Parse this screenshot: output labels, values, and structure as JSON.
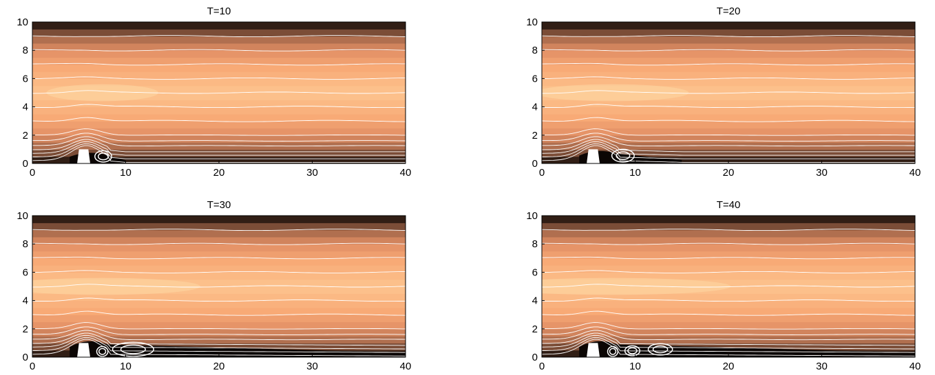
{
  "figure": {
    "colors": {
      "dark": "#0b0604",
      "mid": "#9a6046",
      "peach": "#f3a876",
      "light": "#fdc48f",
      "streamline": "#ffffff",
      "obstacle": "#ffffff"
    }
  },
  "chart_data": [
    {
      "type": "heatmap",
      "title": "T=10",
      "xlim": [
        0,
        40
      ],
      "ylim": [
        0,
        10
      ],
      "xticks": [
        0,
        10,
        20,
        30,
        40
      ],
      "yticks": [
        0,
        2,
        4,
        6,
        8,
        10
      ],
      "streamline_levels": [
        0.2,
        0.45,
        0.7,
        0.95,
        1.25,
        1.6,
        2.0,
        3.0,
        4.0,
        5.0,
        6.0,
        7.0,
        8.0,
        9.0
      ],
      "obstacle": {
        "x": [
          5,
          6
        ],
        "y": [
          0,
          1
        ]
      },
      "wake": {
        "x_end": 10,
        "height": 0.6
      },
      "eddies": [
        {
          "cx": 7.6,
          "cy": 0.5,
          "rx": 0.9,
          "ry": 0.4
        }
      ]
    },
    {
      "type": "heatmap",
      "title": "T=20",
      "xlim": [
        0,
        40
      ],
      "ylim": [
        0,
        10
      ],
      "xticks": [
        0,
        10,
        20,
        30,
        40
      ],
      "yticks": [
        0,
        2,
        4,
        6,
        8,
        10
      ],
      "streamline_levels": [
        0.2,
        0.45,
        0.7,
        0.95,
        1.25,
        1.6,
        2.0,
        3.0,
        4.0,
        5.0,
        6.0,
        7.0,
        8.0,
        9.0
      ],
      "obstacle": {
        "x": [
          5,
          6
        ],
        "y": [
          0,
          1
        ]
      },
      "wake": {
        "x_end": 15,
        "height": 0.7
      },
      "eddies": [
        {
          "cx": 8.7,
          "cy": 0.55,
          "rx": 1.2,
          "ry": 0.45
        }
      ]
    },
    {
      "type": "heatmap",
      "title": "T=30",
      "xlim": [
        0,
        40
      ],
      "ylim": [
        0,
        10
      ],
      "xticks": [
        0,
        10,
        20,
        30,
        40
      ],
      "yticks": [
        0,
        2,
        4,
        6,
        8,
        10
      ],
      "streamline_levels": [
        0.2,
        0.45,
        0.7,
        0.95,
        1.25,
        1.6,
        2.0,
        3.0,
        4.0,
        5.0,
        6.0,
        7.0,
        8.0,
        9.0
      ],
      "obstacle": {
        "x": [
          5,
          6
        ],
        "y": [
          0,
          1
        ]
      },
      "wake": {
        "x_end": 40,
        "height": 0.9
      },
      "eddies": [
        {
          "cx": 7.5,
          "cy": 0.4,
          "rx": 0.6,
          "ry": 0.35
        },
        {
          "cx": 10.8,
          "cy": 0.55,
          "rx": 2.2,
          "ry": 0.5
        }
      ]
    },
    {
      "type": "heatmap",
      "title": "T=40",
      "xlim": [
        0,
        40
      ],
      "ylim": [
        0,
        10
      ],
      "xticks": [
        0,
        10,
        20,
        30,
        40
      ],
      "yticks": [
        0,
        2,
        4,
        6,
        8,
        10
      ],
      "streamline_levels": [
        0.2,
        0.45,
        0.7,
        0.95,
        1.25,
        1.6,
        2.0,
        3.0,
        4.0,
        5.0,
        6.0,
        7.0,
        8.0,
        9.0
      ],
      "obstacle": {
        "x": [
          5,
          6
        ],
        "y": [
          0,
          1
        ]
      },
      "wake": {
        "x_end": 40,
        "height": 0.9
      },
      "eddies": [
        {
          "cx": 7.6,
          "cy": 0.4,
          "rx": 0.55,
          "ry": 0.35
        },
        {
          "cx": 9.7,
          "cy": 0.45,
          "rx": 0.8,
          "ry": 0.35
        },
        {
          "cx": 12.7,
          "cy": 0.55,
          "rx": 1.3,
          "ry": 0.4
        }
      ]
    }
  ]
}
